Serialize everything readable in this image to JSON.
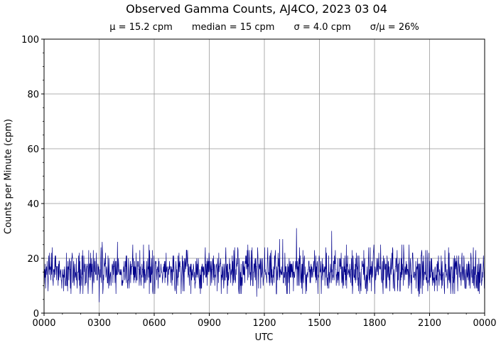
{
  "chart_data": {
    "type": "line",
    "title": "Observed Gamma Counts, AJ4CO, 2023 03 04",
    "stats": {
      "mean": "μ = 15.2 cpm",
      "median": "median = 15 cpm",
      "sigma": "σ = 4.0 cpm",
      "ratio": "σ/μ = 26%"
    },
    "xlabel": "UTC",
    "ylabel": "Counts per Minute (cpm)",
    "x_ticks": [
      "0000",
      "0300",
      "0600",
      "0900",
      "1200",
      "1500",
      "1800",
      "2100",
      "0000"
    ],
    "y_ticks": [
      0,
      20,
      40,
      60,
      80,
      100
    ],
    "ylim": [
      0,
      100
    ],
    "xlim_minutes": [
      0,
      1440
    ],
    "grid": true,
    "series": [
      {
        "color": "#00008b",
        "sample_interval_minutes": 1,
        "mean": 15.2,
        "sigma": 4.0,
        "min": 4,
        "max": 31,
        "notable_peaks": [
          {
            "x": "0310",
            "y": 26
          },
          {
            "x": "0400",
            "y": 26
          },
          {
            "x": "1250",
            "y": 27
          },
          {
            "x": "1300",
            "y": 27
          },
          {
            "x": "1345",
            "y": 31
          },
          {
            "x": "1540",
            "y": 30
          }
        ],
        "notable_dips": [
          {
            "x": "0300",
            "y": 4
          },
          {
            "x": "1135",
            "y": 6
          },
          {
            "x": "2025",
            "y": 6
          }
        ]
      }
    ]
  }
}
